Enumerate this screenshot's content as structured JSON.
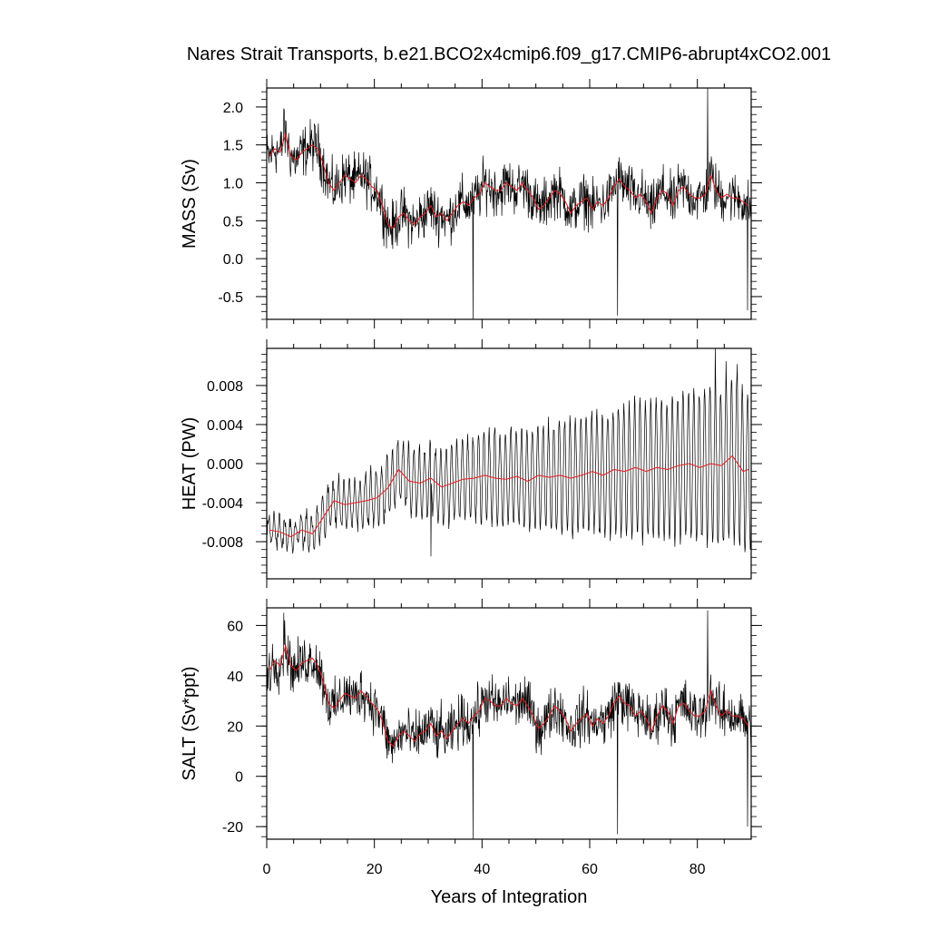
{
  "chart_data": {
    "type": "line",
    "title": "Nares Strait Transports, b.e21.BCO2x4cmip6.f09_g17.CMIP6-abrupt4xCO2.001",
    "xlabel": "Years of Integration",
    "xlim": [
      0,
      90
    ],
    "xticks": [
      0,
      20,
      40,
      60,
      80
    ],
    "xtick_labels": [
      "0",
      "20",
      "40",
      "60",
      "80"
    ],
    "series_colors": {
      "monthly": "#000000",
      "annual_mean": "#e8191d"
    },
    "panels": [
      {
        "name": "mass",
        "ylabel": "MASS (Sv)",
        "ylim": [
          -0.8,
          2.25
        ],
        "yticks": [
          2.0,
          1.5,
          1.0,
          0.5,
          0.0,
          -0.5
        ],
        "ytick_labels": [
          "2.0",
          "1.5",
          "1.0",
          "0.5",
          "0.0",
          "-0.5"
        ],
        "annual_mean": {
          "x": [
            0.5,
            1.5,
            2.5,
            3.5,
            4.5,
            5.5,
            6.5,
            7.5,
            8.5,
            9.5,
            10.5,
            11.5,
            12.5,
            13.5,
            14.5,
            15.5,
            16.5,
            17.5,
            18.5,
            19.5,
            20.5,
            21.5,
            22.5,
            23.5,
            24.5,
            25.5,
            26.5,
            27.5,
            28.5,
            29.5,
            30.5,
            31.5,
            32.5,
            33.5,
            34.5,
            35.5,
            36.5,
            37.5,
            38.5,
            39.5,
            40.5,
            41.5,
            42.5,
            43.5,
            44.5,
            45.5,
            46.5,
            47.5,
            48.5,
            49.5,
            50.5,
            51.5,
            52.5,
            53.5,
            54.5,
            55.5,
            56.5,
            57.5,
            58.5,
            59.5,
            60.5,
            61.5,
            62.5,
            63.5,
            64.5,
            65.5,
            66.5,
            67.5,
            68.5,
            69.5,
            70.5,
            71.5,
            72.5,
            73.5,
            74.5,
            75.5,
            76.5,
            77.5,
            78.5,
            79.5,
            80.5,
            81.5,
            82.5,
            83.5,
            84.5,
            85.5,
            86.5,
            87.5,
            88.5,
            89.5
          ],
          "y": [
            1.35,
            1.45,
            1.4,
            1.65,
            1.35,
            1.3,
            1.4,
            1.45,
            1.5,
            1.45,
            1.25,
            1.0,
            0.9,
            1.0,
            1.1,
            1.05,
            1.0,
            1.1,
            1.05,
            0.95,
            0.9,
            0.7,
            0.45,
            0.4,
            0.55,
            0.6,
            0.5,
            0.45,
            0.55,
            0.6,
            0.7,
            0.55,
            0.6,
            0.5,
            0.6,
            0.7,
            0.75,
            0.7,
            0.8,
            0.85,
            1.0,
            0.95,
            0.9,
            0.9,
            1.0,
            0.95,
            0.9,
            1.0,
            0.9,
            0.8,
            0.65,
            0.7,
            0.8,
            0.9,
            0.85,
            0.75,
            0.6,
            0.7,
            0.75,
            0.8,
            0.65,
            0.75,
            0.7,
            0.8,
            0.95,
            1.05,
            0.95,
            0.9,
            0.8,
            0.85,
            0.75,
            0.6,
            0.8,
            0.9,
            0.85,
            0.7,
            0.9,
            0.95,
            0.85,
            0.8,
            0.8,
            0.85,
            1.1,
            0.9,
            0.8,
            0.85,
            0.8,
            0.8,
            0.75,
            0.7
          ]
        },
        "monthly_profile": {
          "note": "monthly series approximated as annual_mean plus noise",
          "noise_amplitude": 0.5,
          "spikes": [
            [
              3.2,
              1.98
            ],
            [
              38.3,
              -0.8
            ],
            [
              65.2,
              -0.75
            ],
            [
              81.9,
              2.25
            ],
            [
              89.3,
              -0.68
            ]
          ]
        }
      },
      {
        "name": "heat",
        "ylabel": "HEAT (PW)",
        "ylim": [
          -0.0118,
          0.0118
        ],
        "yticks": [
          0.008,
          0.004,
          0.0,
          -0.004,
          -0.008
        ],
        "ytick_labels": [
          "0.008",
          "0.004",
          "0.000",
          "-0.004",
          "-0.008"
        ],
        "annual_mean": {
          "x": [
            0.5,
            2.5,
            4.5,
            6.5,
            8.5,
            10.5,
            12.5,
            14.5,
            16.5,
            18.5,
            20.5,
            22.5,
            24.5,
            26.5,
            28.5,
            30.5,
            32.5,
            34.5,
            36.5,
            38.5,
            40.5,
            42.5,
            44.5,
            46.5,
            48.5,
            50.5,
            52.5,
            54.5,
            56.5,
            58.5,
            60.5,
            62.5,
            64.5,
            66.5,
            68.5,
            70.5,
            72.5,
            74.5,
            76.5,
            78.5,
            80.5,
            82.5,
            84.5,
            86.5,
            88.5,
            89.5
          ],
          "y": [
            -0.0068,
            -0.007,
            -0.0075,
            -0.0068,
            -0.0072,
            -0.0055,
            -0.0038,
            -0.0042,
            -0.004,
            -0.0038,
            -0.0035,
            -0.0025,
            -0.0006,
            -0.0018,
            -0.002,
            -0.0015,
            -0.0024,
            -0.002,
            -0.0016,
            -0.0015,
            -0.0012,
            -0.0015,
            -0.0016,
            -0.0013,
            -0.0018,
            -0.0012,
            -0.0014,
            -0.0012,
            -0.0015,
            -0.0012,
            -0.0008,
            -0.0012,
            -0.0006,
            -0.0008,
            -0.0004,
            -0.0008,
            -0.0004,
            -0.0006,
            -0.0002,
            0.0,
            -0.0004,
            0.0,
            -0.0002,
            0.0008,
            -0.0008,
            -0.0006
          ]
        },
        "monthly_profile": {
          "note": "seasonal cycle whose amplitude grows with time, plus noise",
          "seasonal_amplitude_start": 0.0012,
          "seasonal_amplitude_end": 0.0085,
          "noise_amplitude": 0.0012,
          "spikes": [
            [
              83.3,
              0.0118
            ],
            [
              85.3,
              0.0105
            ],
            [
              87.4,
              0.0102
            ],
            [
              30.5,
              -0.0095
            ]
          ]
        }
      },
      {
        "name": "salt",
        "ylabel": "SALT (Sv*ppt)",
        "ylim": [
          -25,
          67
        ],
        "yticks": [
          60,
          40,
          20,
          0,
          -20
        ],
        "ytick_labels": [
          "60",
          "40",
          "20",
          "0",
          "-20"
        ],
        "annual_mean": {
          "x": [
            0.5,
            1.5,
            2.5,
            3.5,
            4.5,
            5.5,
            6.5,
            7.5,
            8.5,
            9.5,
            10.5,
            11.5,
            12.5,
            13.5,
            14.5,
            15.5,
            16.5,
            17.5,
            18.5,
            19.5,
            20.5,
            21.5,
            22.5,
            23.5,
            24.5,
            25.5,
            26.5,
            27.5,
            28.5,
            29.5,
            30.5,
            31.5,
            32.5,
            33.5,
            34.5,
            35.5,
            36.5,
            37.5,
            38.5,
            39.5,
            40.5,
            41.5,
            42.5,
            43.5,
            44.5,
            45.5,
            46.5,
            47.5,
            48.5,
            49.5,
            50.5,
            51.5,
            52.5,
            53.5,
            54.5,
            55.5,
            56.5,
            57.5,
            58.5,
            59.5,
            60.5,
            61.5,
            62.5,
            63.5,
            64.5,
            65.5,
            66.5,
            67.5,
            68.5,
            69.5,
            70.5,
            71.5,
            72.5,
            73.5,
            74.5,
            75.5,
            76.5,
            77.5,
            78.5,
            79.5,
            80.5,
            81.5,
            82.5,
            83.5,
            84.5,
            85.5,
            86.5,
            87.5,
            88.5,
            89.5
          ],
          "y": [
            42,
            46,
            44,
            52,
            44,
            42,
            45,
            46,
            47,
            44,
            38,
            29,
            27,
            30,
            33,
            32,
            31,
            34,
            32,
            29,
            27,
            22,
            14,
            12,
            16,
            18,
            16,
            14,
            17,
            18,
            21,
            16,
            18,
            15,
            18,
            21,
            23,
            21,
            24,
            26,
            31,
            30,
            28,
            28,
            31,
            29,
            28,
            31,
            28,
            24,
            19,
            21,
            24,
            28,
            26,
            23,
            18,
            21,
            23,
            25,
            20,
            23,
            21,
            24,
            29,
            32,
            29,
            28,
            24,
            26,
            23,
            18,
            24,
            28,
            26,
            21,
            28,
            29,
            26,
            24,
            24,
            26,
            34,
            28,
            24,
            26,
            24,
            24,
            23,
            20
          ]
        },
        "monthly_profile": {
          "note": "monthly series approximated as annual_mean plus noise",
          "noise_amplitude": 15,
          "spikes": [
            [
              3.2,
              65
            ],
            [
              38.3,
              -25
            ],
            [
              65.2,
              -23
            ],
            [
              81.9,
              66
            ],
            [
              89.3,
              -20
            ]
          ]
        }
      }
    ]
  }
}
